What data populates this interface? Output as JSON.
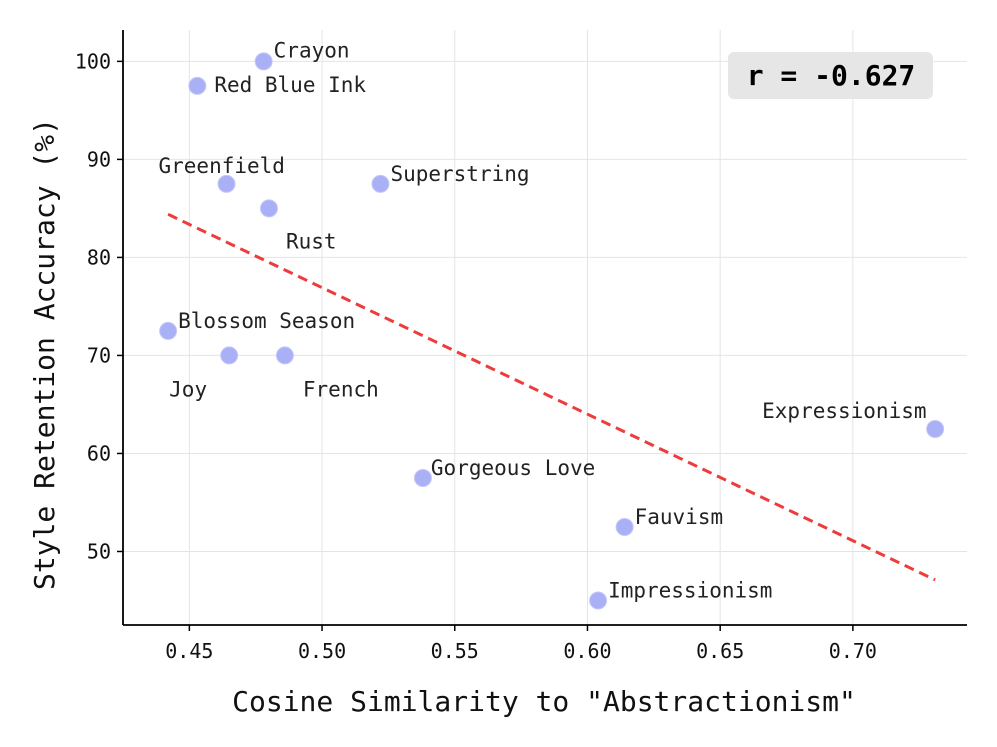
{
  "chart_data": {
    "type": "scatter",
    "xlabel": "Cosine Similarity to \"Abstractionism\"",
    "ylabel": "Style Retention Accuracy (%)",
    "xlim": [
      0.425,
      0.743
    ],
    "ylim": [
      42.5,
      103.2
    ],
    "xticks": [
      0.45,
      0.5,
      0.55,
      0.6,
      0.65,
      0.7
    ],
    "xtick_labels": [
      "0.45",
      "0.50",
      "0.55",
      "0.60",
      "0.65",
      "0.70"
    ],
    "yticks": [
      50,
      60,
      70,
      80,
      90,
      100
    ],
    "ytick_labels": [
      "50",
      "60",
      "70",
      "80",
      "90",
      "100"
    ],
    "grid": true,
    "point_color": "#aab0f5",
    "trend_color": "#ee3b3b",
    "points": [
      {
        "label": "Crayon",
        "x": 0.478,
        "y": 100.0
      },
      {
        "label": "Red Blue Ink",
        "x": 0.453,
        "y": 97.5
      },
      {
        "label": "Greenfield",
        "x": 0.464,
        "y": 87.5
      },
      {
        "label": "Superstring",
        "x": 0.522,
        "y": 87.5
      },
      {
        "label": "Rust",
        "x": 0.48,
        "y": 85.0
      },
      {
        "label": "Blossom Season",
        "x": 0.442,
        "y": 72.5
      },
      {
        "label": "Joy",
        "x": 0.465,
        "y": 70.0
      },
      {
        "label": "French",
        "x": 0.486,
        "y": 70.0
      },
      {
        "label": "Expressionism",
        "x": 0.731,
        "y": 62.5
      },
      {
        "label": "Gorgeous Love",
        "x": 0.538,
        "y": 57.5
      },
      {
        "label": "Fauvism",
        "x": 0.614,
        "y": 52.5
      },
      {
        "label": "Impressionism",
        "x": 0.604,
        "y": 45.0
      }
    ],
    "trendline": {
      "x": [
        0.442,
        0.731
      ],
      "y": [
        84.4,
        47.1
      ],
      "style": "dashed"
    },
    "annotation": "r = -0.627"
  }
}
